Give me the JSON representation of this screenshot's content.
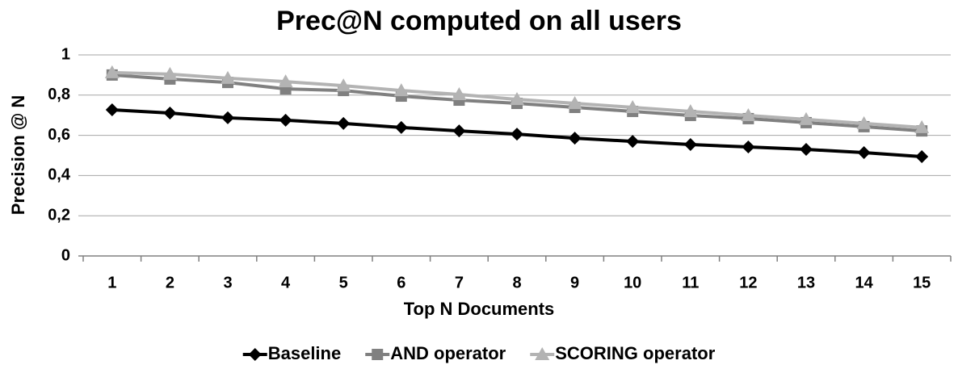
{
  "chart_data": {
    "type": "line",
    "title": "Prec@N computed on all users",
    "x_label": "Top N Documents",
    "y_label": "Precision @ N",
    "categories": [
      "1",
      "2",
      "3",
      "4",
      "5",
      "6",
      "7",
      "8",
      "9",
      "10",
      "11",
      "12",
      "13",
      "14",
      "15"
    ],
    "series": [
      {
        "name": "Baseline",
        "color": "#000000",
        "marker": "diamond",
        "values": [
          0.727,
          0.711,
          0.687,
          0.675,
          0.659,
          0.639,
          0.622,
          0.606,
          0.586,
          0.57,
          0.554,
          0.542,
          0.53,
          0.514,
          0.494
        ]
      },
      {
        "name": "AND operator",
        "color": "#808080",
        "marker": "square",
        "values": [
          0.9,
          0.88,
          0.863,
          0.831,
          0.823,
          0.795,
          0.775,
          0.759,
          0.739,
          0.719,
          0.699,
          0.683,
          0.663,
          0.643,
          0.622
        ]
      },
      {
        "name": "SCORING operator",
        "color": "#b3b3b3",
        "marker": "triangle",
        "values": [
          0.912,
          0.904,
          0.884,
          0.867,
          0.847,
          0.823,
          0.803,
          0.779,
          0.759,
          0.739,
          0.719,
          0.699,
          0.679,
          0.659,
          0.639
        ]
      }
    ],
    "ylim": [
      0,
      1
    ],
    "yticks": [
      0,
      {
        "value": 0.2,
        "label": "0,2"
      },
      {
        "value": 0.4,
        "label": "0,4"
      },
      {
        "value": 0.6,
        "label": "0,6"
      },
      {
        "value": 0.8,
        "label": "0,8"
      },
      1
    ],
    "grid": true,
    "legend": "bottom"
  }
}
